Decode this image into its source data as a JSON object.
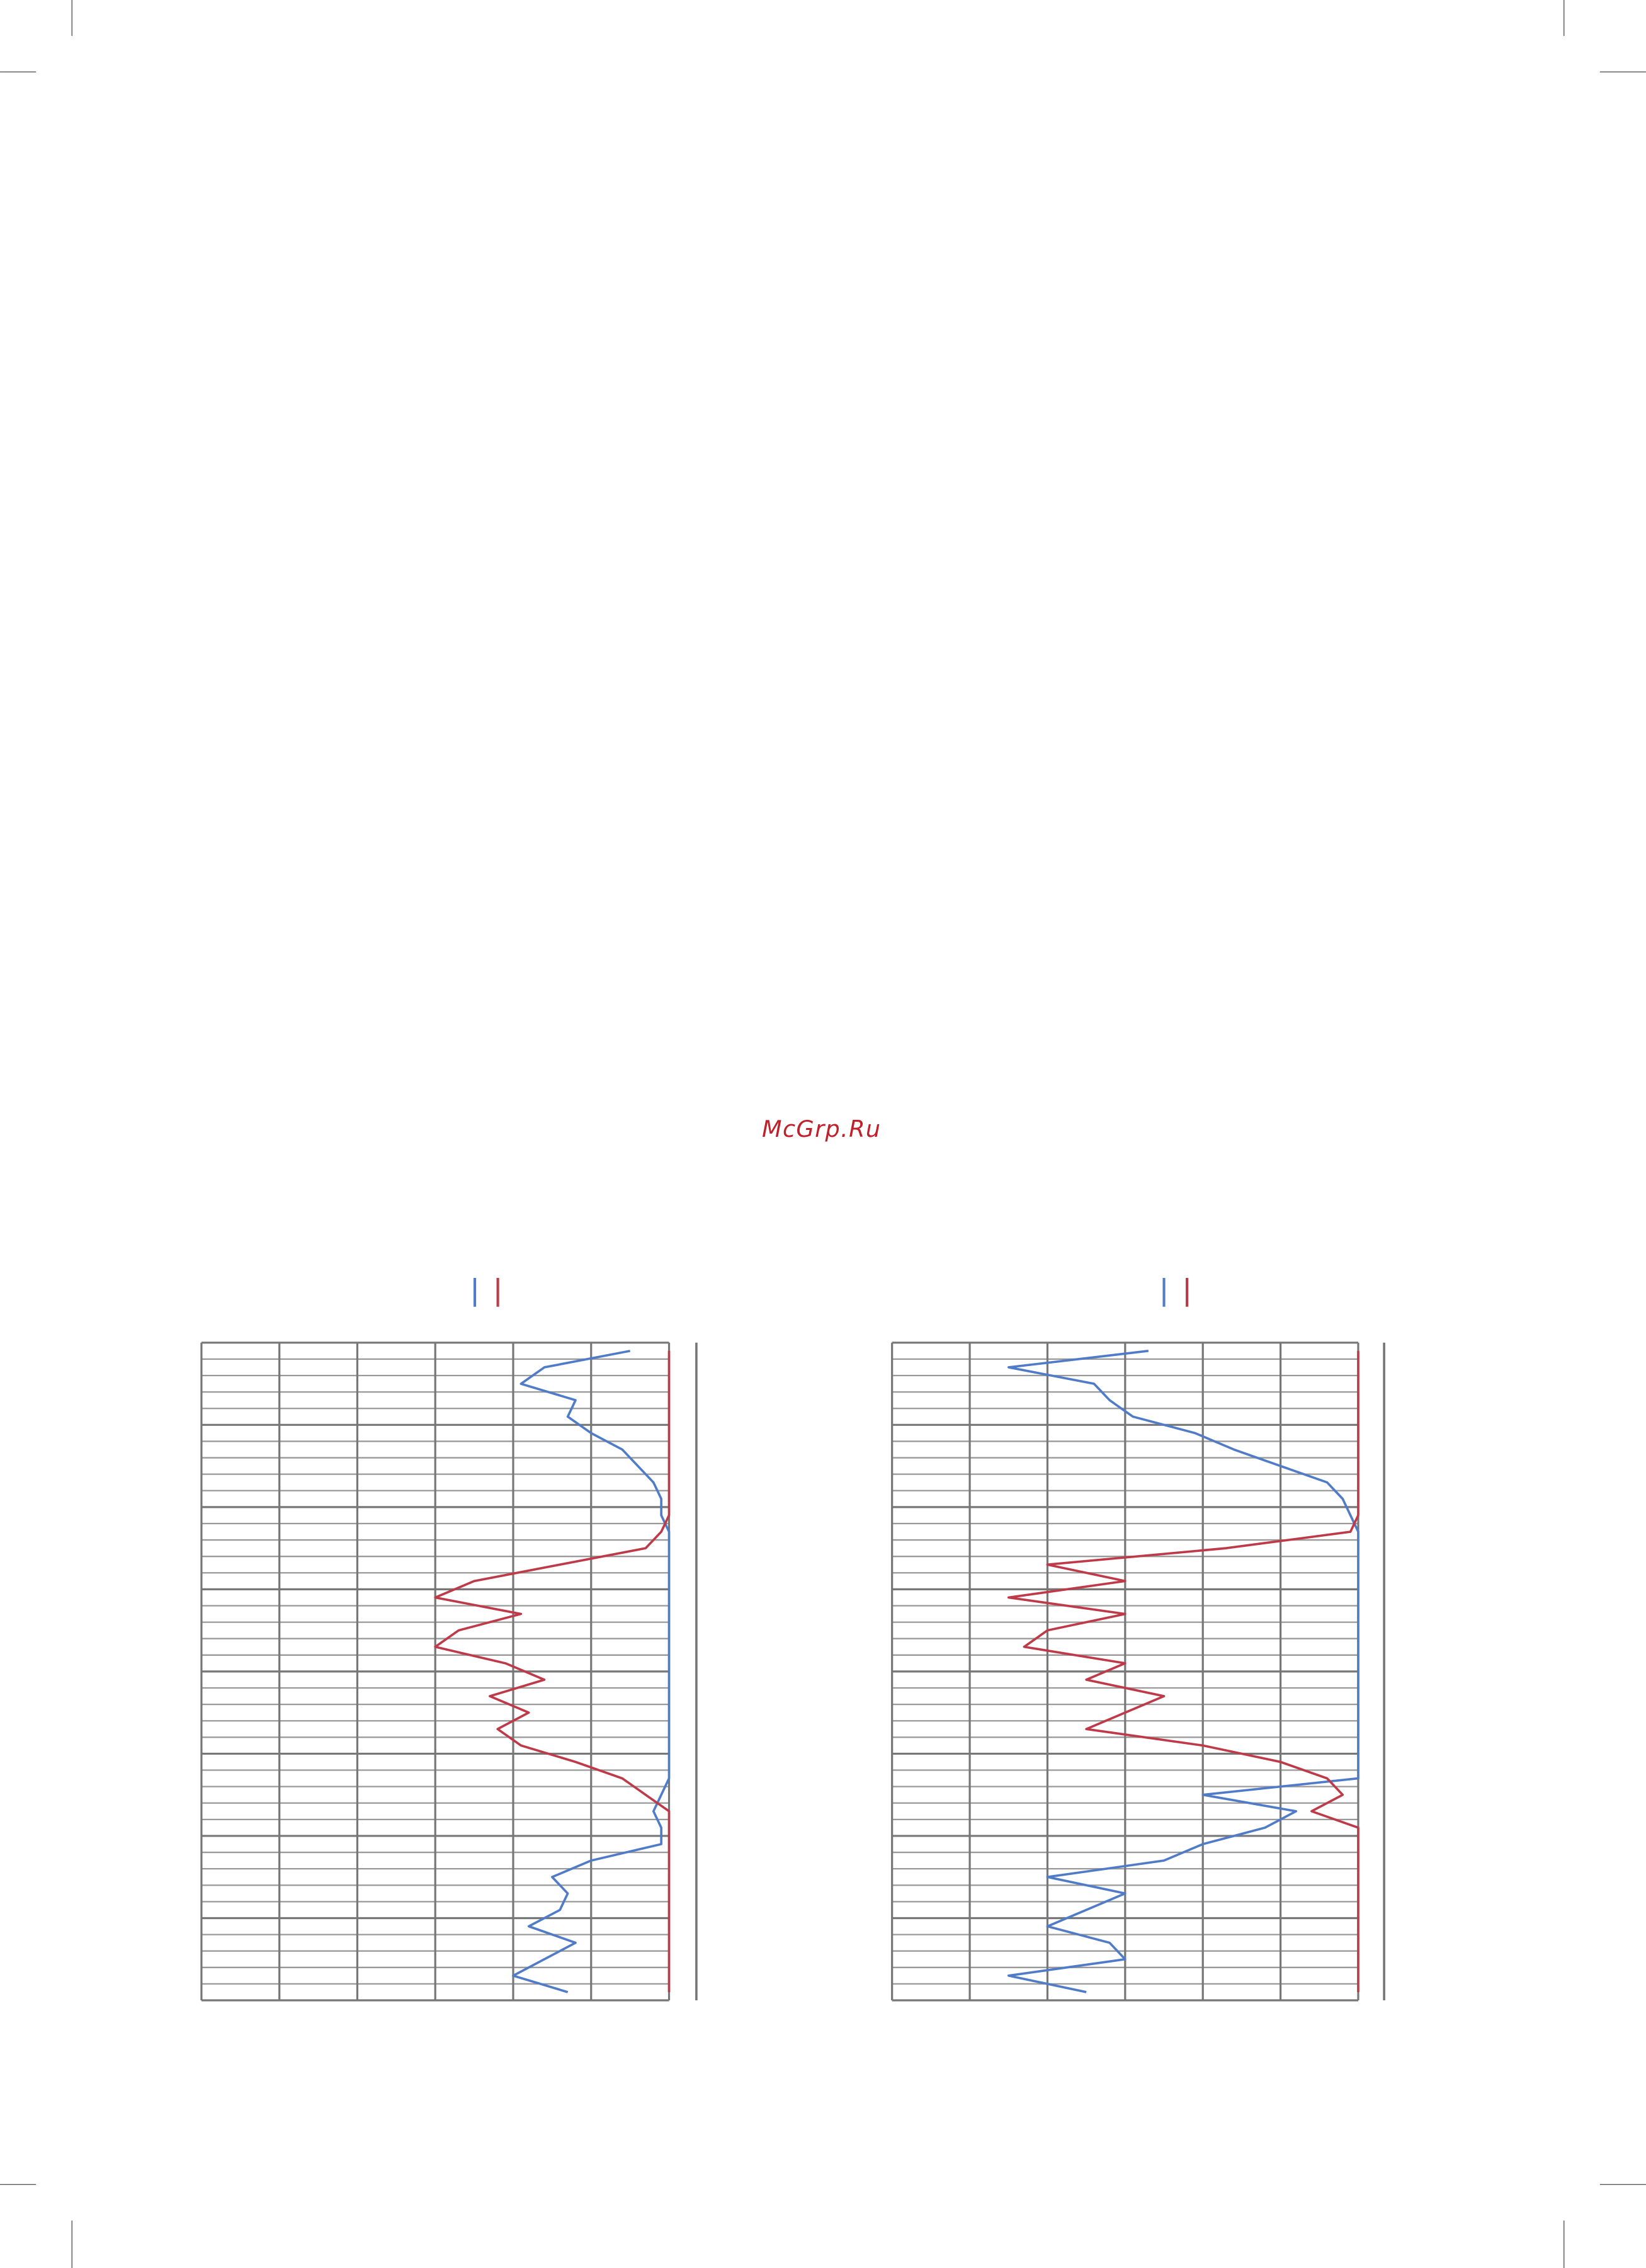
{
  "watermark": "McGrp.Ru",
  "chart_data": [
    {
      "type": "line",
      "orientation": "horizontal",
      "categories": [
        null,
        null,
        null,
        null,
        null,
        null,
        null,
        null,
        null,
        null,
        null,
        null,
        null,
        null,
        null,
        null,
        null,
        null,
        null,
        null,
        null,
        null,
        null,
        null,
        null,
        null,
        null,
        null,
        null,
        null,
        null,
        null,
        null,
        null,
        null,
        null,
        null,
        null,
        null,
        null
      ],
      "xlim": [
        -60,
        0
      ],
      "xticks": [
        -60,
        -50,
        -40,
        -30,
        -20,
        -10,
        0
      ],
      "grid": true,
      "series": [
        {
          "color": "#4f7bc8",
          "values": [
            -5,
            -16,
            -19,
            -12,
            -13,
            -10,
            -6,
            -4,
            -2,
            -1,
            -1,
            0,
            0,
            0,
            0,
            0,
            0,
            0,
            0,
            0,
            0,
            0,
            0,
            0,
            0,
            0,
            0,
            -1,
            -2,
            -1,
            -1,
            -10,
            -15,
            -13,
            -14,
            -18,
            -12,
            -16,
            -20,
            -13
          ]
        },
        {
          "color": "#bf3a48",
          "values": [
            0,
            0,
            0,
            0,
            0,
            0,
            0,
            0,
            0,
            0,
            0,
            -1,
            -3,
            -14,
            -25,
            -30,
            -19,
            -27,
            -30,
            -21,
            -16,
            -23,
            -18,
            -22,
            -19,
            -12,
            -6,
            -3,
            0,
            0,
            0,
            0,
            0,
            0,
            0,
            0,
            0,
            0,
            0,
            0
          ]
        }
      ]
    },
    {
      "type": "line",
      "orientation": "horizontal",
      "categories": [
        null,
        null,
        null,
        null,
        null,
        null,
        null,
        null,
        null,
        null,
        null,
        null,
        null,
        null,
        null,
        null,
        null,
        null,
        null,
        null,
        null,
        null,
        null,
        null,
        null,
        null,
        null,
        null,
        null,
        null,
        null,
        null,
        null,
        null,
        null,
        null,
        null,
        null,
        null,
        null
      ],
      "xlim": [
        -60,
        0
      ],
      "xticks": [
        -60,
        -50,
        -40,
        -30,
        -20,
        -10,
        0
      ],
      "grid": true,
      "series": [
        {
          "color": "#4f7bc8",
          "values": [
            -27,
            -45,
            -34,
            -32,
            -29,
            -21,
            -16,
            -10,
            -4,
            -2,
            -1,
            0,
            0,
            0,
            0,
            0,
            0,
            0,
            0,
            0,
            0,
            0,
            0,
            0,
            0,
            0,
            0,
            -20,
            -8,
            -12,
            -20,
            -25,
            -40,
            -30,
            -35,
            -40,
            -32,
            -30,
            -45,
            -35
          ]
        },
        {
          "color": "#bf3a48",
          "values": [
            0,
            0,
            0,
            0,
            0,
            0,
            0,
            0,
            0,
            0,
            0,
            -1,
            -17,
            -40,
            -30,
            -45,
            -30,
            -40,
            -43,
            -30,
            -35,
            -25,
            -30,
            -35,
            -20,
            -10,
            -4,
            -2,
            -6,
            0,
            0,
            0,
            0,
            0,
            0,
            0,
            0,
            0,
            0,
            0
          ]
        }
      ]
    }
  ]
}
